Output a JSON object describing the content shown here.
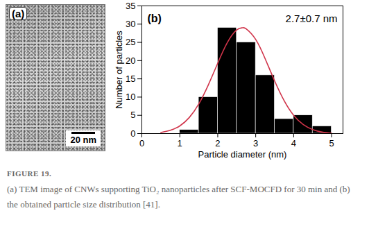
{
  "chart_data": {
    "type": "histogram",
    "panel_label": "(b)",
    "annotation": "2.7±0.7 nm",
    "xlabel": "Particle diameter (nm)",
    "ylabel": "Number of particles",
    "bins": [
      1.0,
      1.5,
      2.0,
      2.5,
      3.0,
      3.5,
      4.0,
      4.5,
      5.0
    ],
    "counts": [
      1,
      10,
      29,
      25,
      16,
      4,
      5,
      2
    ],
    "color": "#000000",
    "fit": {
      "type": "line",
      "color": "#d0344a",
      "x": [
        0.5,
        0.75,
        1.0,
        1.25,
        1.5,
        1.75,
        2.0,
        2.25,
        2.5,
        2.65,
        2.75,
        3.0,
        3.25,
        3.5,
        3.75,
        4.0,
        4.25,
        4.5,
        4.75,
        5.0
      ],
      "values": [
        0.3,
        0.9,
        2.1,
        4.4,
        8.1,
        13.3,
        19.3,
        24.9,
        28.4,
        29.0,
        28.7,
        25.8,
        20.5,
        14.4,
        9.0,
        5.0,
        2.5,
        1.1,
        0.4,
        0.1
      ]
    },
    "xlim": [
      0,
      5.3
    ],
    "xticks": [
      0,
      1,
      2,
      3,
      4,
      5
    ],
    "ylim": [
      0,
      35
    ],
    "yticks": [
      0,
      5,
      10,
      15,
      20,
      25,
      30,
      35
    ],
    "grid": false
  },
  "image_panel": {
    "panel_label": "(a)",
    "scale_bar": "20 nm"
  },
  "caption": {
    "heading": "FIGURE 19.",
    "text": "(a) TEM image of CNWs supporting TiO₂ nanoparticles after SCF-MOCFD for 30 min and (b) the obtained particle size distribution [41]."
  }
}
